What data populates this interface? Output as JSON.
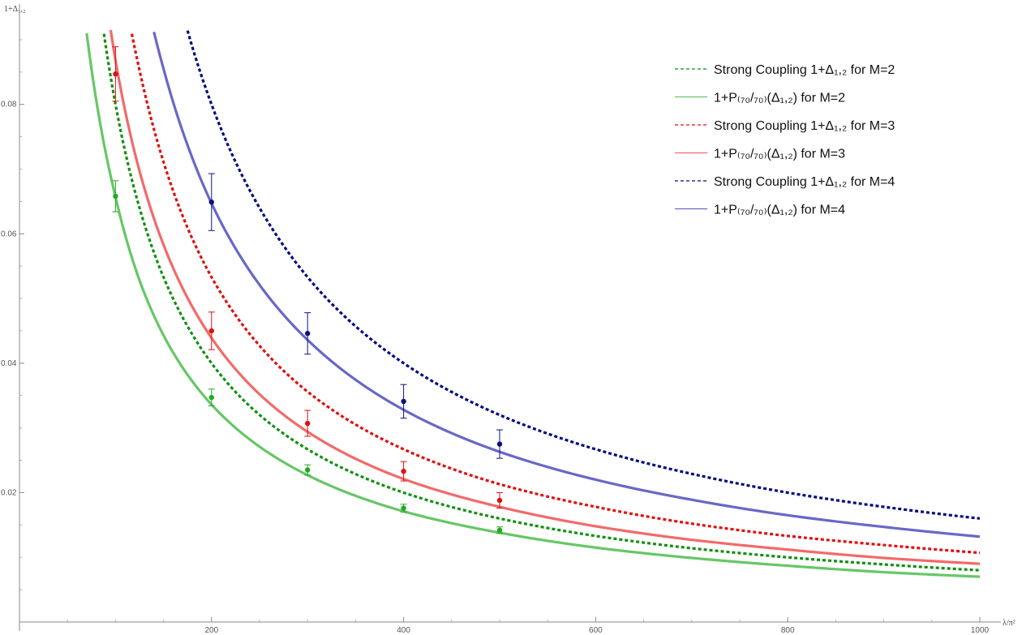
{
  "chart_data": {
    "type": "line",
    "title": "",
    "xlabel": "λ/π²",
    "ylabel": "1+Δ₁,₂",
    "xlim": [
      0,
      1000
    ],
    "ylim": [
      0.0,
      0.094
    ],
    "x_ticks": [
      200,
      400,
      600,
      800,
      1000
    ],
    "y_ticks": [
      0.02,
      0.04,
      0.06,
      0.08
    ],
    "x_tick_labels": [
      "200",
      "400",
      "600",
      "800",
      "1000"
    ],
    "y_tick_labels": [
      "0.02",
      "0.04",
      "0.06",
      "0.08"
    ],
    "grid": false,
    "legend_position": "top-right",
    "legend": [
      {
        "text": "Strong Coupling 1+Δ₁,₂ for M=2",
        "color": "#109010",
        "style": "dashed"
      },
      {
        "text": "1+P₍₇₀/₇₀₎(Δ₁,₂) for M=2",
        "color": "#66c766",
        "style": "solid"
      },
      {
        "text": "Strong Coupling 1+Δ₁,₂ for M=3",
        "color": "#e01010",
        "style": "dashed"
      },
      {
        "text": "1+P₍₇₀/₇₀₎(Δ₁,₂) for M=3",
        "color": "#f26a6a",
        "style": "solid"
      },
      {
        "text": "Strong Coupling 1+Δ₁,₂ for M=4",
        "color": "#000b80",
        "style": "dashed"
      },
      {
        "text": "1+P₍₇₀/₇₀₎(Δ₁,₂) for M=4",
        "color": "#6868c8",
        "style": "solid"
      }
    ],
    "series": [
      {
        "color": "#109010",
        "style": "dashed",
        "x": [
          88,
          100,
          125,
          150,
          200,
          250,
          300,
          400,
          500,
          600,
          700,
          800,
          900,
          1000
        ],
        "y": [
          0.0909,
          0.08,
          0.064,
          0.0533,
          0.04,
          0.032,
          0.0267,
          0.02,
          0.016,
          0.0133,
          0.0114,
          0.01,
          0.0089,
          0.008
        ]
      },
      {
        "color": "#66c766",
        "style": "solid",
        "x": [
          70,
          80,
          100,
          125,
          150,
          200,
          250,
          300,
          400,
          500,
          600,
          700,
          800,
          900,
          1000
        ],
        "y": [
          0.091,
          0.0806,
          0.0657,
          0.0528,
          0.0443,
          0.0336,
          0.0271,
          0.0227,
          0.0171,
          0.0138,
          0.0115,
          0.0099,
          0.0087,
          0.0077,
          0.007
        ]
      },
      {
        "color": "#e01010",
        "style": "dashed",
        "x": [
          117,
          125,
          150,
          200,
          250,
          300,
          400,
          500,
          600,
          700,
          800,
          900,
          1000
        ],
        "y": [
          0.0909,
          0.0853,
          0.0711,
          0.0533,
          0.0427,
          0.0356,
          0.0267,
          0.0213,
          0.0178,
          0.0152,
          0.0133,
          0.0119,
          0.0107
        ]
      },
      {
        "color": "#f26a6a",
        "style": "solid",
        "x": [
          95,
          100,
          125,
          150,
          200,
          250,
          300,
          400,
          500,
          600,
          700,
          800,
          900,
          1000
        ],
        "y": [
          0.0915,
          0.0868,
          0.0697,
          0.0583,
          0.0439,
          0.0352,
          0.0294,
          0.0221,
          0.0178,
          0.0148,
          0.0127,
          0.0112,
          0.0099,
          0.009
        ]
      },
      {
        "color": "#000b80",
        "style": "dashed",
        "x": [
          175,
          200,
          250,
          300,
          400,
          500,
          600,
          700,
          800,
          900,
          1000
        ],
        "y": [
          0.0914,
          0.08,
          0.064,
          0.0533,
          0.04,
          0.032,
          0.0267,
          0.0229,
          0.02,
          0.0178,
          0.016
        ]
      },
      {
        "color": "#6868c8",
        "style": "solid",
        "x": [
          140,
          150,
          175,
          200,
          250,
          300,
          400,
          500,
          600,
          700,
          800,
          900,
          1000
        ],
        "y": [
          0.0912,
          0.0855,
          0.0737,
          0.0647,
          0.0521,
          0.0436,
          0.0328,
          0.0263,
          0.022,
          0.0189,
          0.0165,
          0.0147,
          0.0132
        ]
      }
    ],
    "error_bars": [
      {
        "color": "#22aa22",
        "points": [
          {
            "x": 100,
            "y": 0.0658,
            "err": 0.0024
          },
          {
            "x": 200,
            "y": 0.0347,
            "err": 0.0013
          },
          {
            "x": 300,
            "y": 0.0235,
            "err": 0.0008
          },
          {
            "x": 400,
            "y": 0.0176,
            "err": 0.0006
          },
          {
            "x": 500,
            "y": 0.0142,
            "err": 0.0005
          }
        ]
      },
      {
        "color": "#dd1111",
        "points": [
          {
            "x": 100,
            "y": 0.0847,
            "err": 0.0042
          },
          {
            "x": 200,
            "y": 0.045,
            "err": 0.0029
          },
          {
            "x": 300,
            "y": 0.0307,
            "err": 0.002
          },
          {
            "x": 400,
            "y": 0.0233,
            "err": 0.0015
          },
          {
            "x": 500,
            "y": 0.0188,
            "err": 0.0012
          }
        ]
      },
      {
        "color": "#10107a",
        "points": [
          {
            "x": 200,
            "y": 0.0649,
            "err": 0.0044
          },
          {
            "x": 300,
            "y": 0.0446,
            "err": 0.0032
          },
          {
            "x": 400,
            "y": 0.0341,
            "err": 0.0026
          },
          {
            "x": 500,
            "y": 0.0275,
            "err": 0.0022
          }
        ]
      }
    ]
  }
}
